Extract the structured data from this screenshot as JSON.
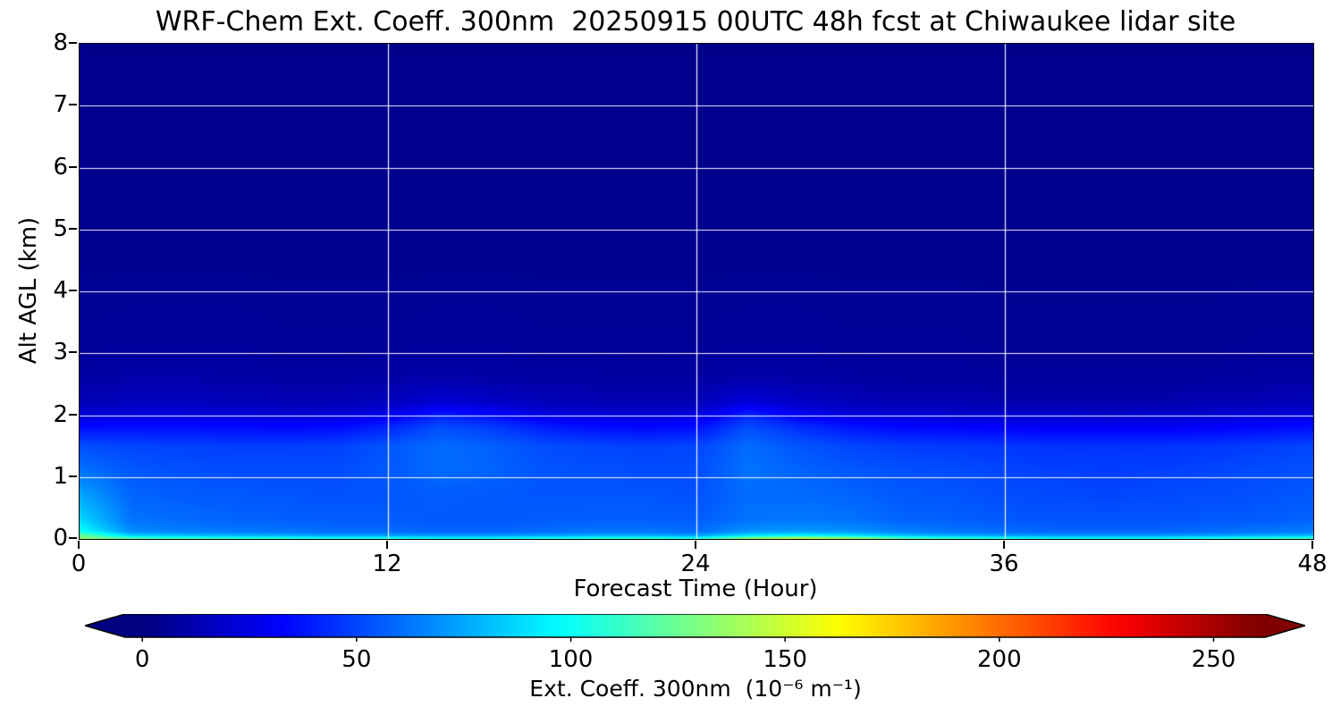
{
  "title": "WRF-Chem Ext. Coeff. 300nm  20250915 00UTC 48h fcst at Chiwaukee lidar site",
  "axes": {
    "ylabel": "Alt AGL (km)",
    "xlabel": "Forecast Time (Hour)",
    "x_ticks": [
      0,
      12,
      24,
      36,
      48
    ],
    "y_ticks": [
      0,
      1,
      2,
      3,
      4,
      5,
      6,
      7,
      8
    ]
  },
  "colorbar": {
    "label": "Ext. Coeff. 300nm  (10⁻⁶ m⁻¹)",
    "ticks": [
      0,
      50,
      100,
      150,
      200,
      250
    ],
    "extend": "both"
  },
  "chart_data": {
    "type": "heatmap",
    "title": "WRF-Chem Ext. Coeff. 300nm  20250915 00UTC 48h fcst at Chiwaukee lidar site",
    "xlabel": "Forecast Time (Hour)",
    "ylabel": "Alt AGL (km)",
    "xlim": [
      0,
      48
    ],
    "ylim": [
      0,
      8
    ],
    "vmin": 0,
    "vmax": 260,
    "colorbar_body_range": [
      -4,
      262
    ],
    "colormap": "jet",
    "colormap_stops": [
      [
        0.0,
        0,
        0,
        0.5
      ],
      [
        0.125,
        0,
        0,
        1
      ],
      [
        0.375,
        0,
        1,
        1
      ],
      [
        0.625,
        1,
        1,
        0
      ],
      [
        0.875,
        1,
        0,
        0
      ],
      [
        1.0,
        0.5,
        0,
        0
      ]
    ],
    "grid": {
      "x_lines": [
        12,
        24,
        36
      ],
      "y_lines": [
        1,
        2,
        3,
        4,
        5,
        6,
        7
      ],
      "color": "#ffffff"
    },
    "x_hours": [
      0,
      2,
      4,
      6,
      8,
      10,
      12,
      14,
      16,
      18,
      20,
      22,
      24,
      26,
      28,
      30,
      32,
      34,
      36,
      38,
      40,
      42,
      44,
      46,
      48
    ],
    "y_alt_km": [
      0.0,
      0.05,
      0.12,
      0.3,
      0.7,
      1.1,
      1.5,
      1.8,
      2.0,
      2.2,
      2.6,
      3.2,
      4.5,
      8.0
    ],
    "values": [
      [
        135,
        120,
        115,
        110,
        108,
        105,
        105,
        100,
        100,
        105,
        108,
        110,
        105,
        135,
        150,
        140,
        120,
        112,
        105,
        100,
        100,
        100,
        105,
        110,
        115
      ],
      [
        125,
        85,
        80,
        78,
        75,
        72,
        72,
        70,
        70,
        72,
        75,
        75,
        72,
        90,
        95,
        90,
        80,
        75,
        72,
        70,
        70,
        70,
        72,
        75,
        78
      ],
      [
        100,
        68,
        65,
        63,
        62,
        60,
        60,
        58,
        58,
        60,
        62,
        62,
        60,
        70,
        72,
        70,
        65,
        62,
        60,
        58,
        58,
        58,
        60,
        62,
        64
      ],
      [
        88,
        62,
        60,
        58,
        57,
        56,
        56,
        55,
        55,
        56,
        57,
        57,
        56,
        62,
        63,
        62,
        58,
        57,
        55,
        54,
        54,
        54,
        55,
        56,
        58
      ],
      [
        75,
        58,
        56,
        55,
        54,
        53,
        54,
        56,
        55,
        54,
        54,
        54,
        53,
        60,
        60,
        58,
        55,
        54,
        52,
        51,
        50,
        51,
        52,
        53,
        55
      ],
      [
        62,
        55,
        53,
        52,
        52,
        52,
        55,
        60,
        58,
        54,
        53,
        52,
        52,
        62,
        58,
        55,
        53,
        52,
        50,
        49,
        48,
        49,
        50,
        52,
        53
      ],
      [
        52,
        50,
        49,
        48,
        48,
        49,
        54,
        60,
        57,
        52,
        50,
        49,
        50,
        60,
        54,
        50,
        48,
        47,
        46,
        45,
        45,
        45,
        46,
        48,
        50
      ],
      [
        35,
        36,
        36,
        35,
        34,
        35,
        42,
        52,
        48,
        40,
        36,
        34,
        36,
        52,
        44,
        38,
        34,
        33,
        32,
        31,
        30,
        31,
        32,
        34,
        36
      ],
      [
        22,
        24,
        24,
        23,
        22,
        23,
        28,
        40,
        34,
        26,
        23,
        22,
        24,
        42,
        30,
        24,
        22,
        21,
        20,
        20,
        19,
        20,
        21,
        22,
        24
      ],
      [
        14,
        16,
        16,
        15,
        14,
        14,
        16,
        22,
        19,
        15,
        14,
        13,
        14,
        24,
        18,
        15,
        13,
        13,
        12,
        12,
        12,
        12,
        13,
        14,
        15
      ],
      [
        9,
        11,
        11,
        10,
        9,
        9,
        10,
        11,
        10,
        9,
        9,
        8,
        9,
        11,
        10,
        9,
        8,
        8,
        8,
        8,
        8,
        8,
        8,
        9,
        9
      ],
      [
        6,
        7,
        7,
        7,
        6,
        6,
        6,
        7,
        7,
        6,
        6,
        6,
        6,
        7,
        7,
        6,
        6,
        6,
        5,
        5,
        5,
        5,
        5,
        6,
        6
      ],
      [
        4,
        4,
        4,
        4,
        4,
        4,
        4,
        4,
        4,
        4,
        4,
        4,
        4,
        4,
        4,
        4,
        4,
        4,
        4,
        4,
        4,
        4,
        4,
        4,
        4
      ],
      [
        3,
        3,
        3,
        3,
        3,
        3,
        3,
        3,
        3,
        3,
        3,
        3,
        3,
        3,
        3,
        3,
        3,
        3,
        3,
        3,
        3,
        3,
        3,
        3,
        3
      ]
    ]
  }
}
